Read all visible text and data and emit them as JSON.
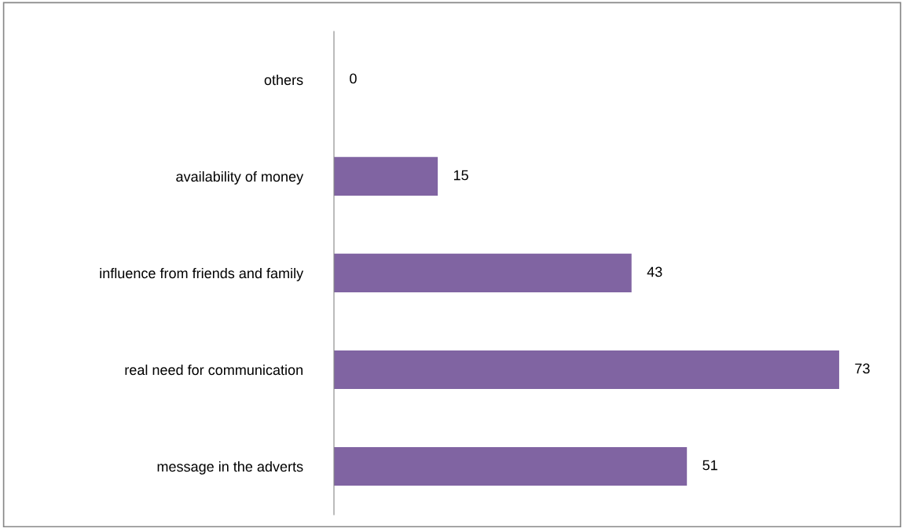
{
  "chart_data": {
    "type": "bar",
    "orientation": "horizontal",
    "categories": [
      "others",
      "availability of money",
      "influence from friends and family",
      "real need for communication",
      "message in the adverts"
    ],
    "values": [
      0,
      15,
      43,
      73,
      51
    ],
    "color": "#8064a2",
    "data_labels": true,
    "grid": false,
    "legend": false
  }
}
